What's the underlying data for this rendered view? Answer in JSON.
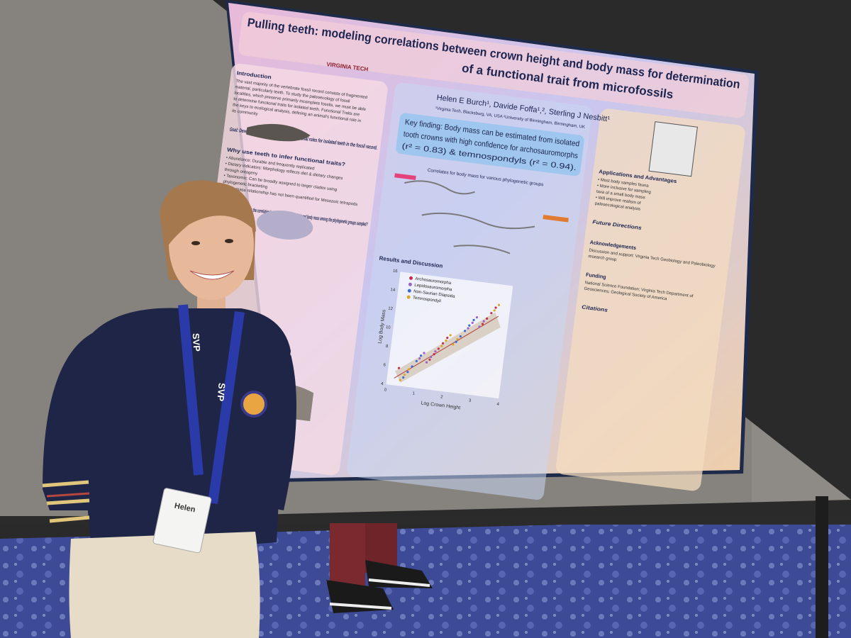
{
  "poster": {
    "title_lines": [
      "Pulling teeth: modeling correlations between crown height and body mass for determination",
      "of a functional trait from microfossils"
    ],
    "logo": "VIRGINIA TECH",
    "authors": "Helen E Burch¹, Davide Foffa¹,², Sterling J Nesbitt¹",
    "affiliations": "¹Virginia Tech, Blacksburg, VA, USA ²University of Birmingham, Birmingham, UK",
    "key_finding": [
      "Key finding: Body mass can be estimated from isolated",
      "tooth crowns with high confidence for archosauromorphs",
      "(r² = 0.83) & temnospondyls (r² = 0.94)."
    ],
    "figure_title": "Correlates for body mass for various phylogenetic groups",
    "left_sections": [
      {
        "heading": "Introduction",
        "lines": [
          "The vast majority of the vertebrate fossil record consists of fragmented",
          "material, particularly teeth. To study the paleoecology of fossil",
          "localities, which preserve primarily incomplete fossils, we must be able",
          "to determine functional traits for isolated teeth. Functional Traits are",
          "the keys to ecological analysis, defining an animal's functional role in",
          "its community"
        ]
      },
      {
        "heading": "Goal: Develop a method to better infer functional roles for isolated teeth in the fossil record.",
        "lines": []
      },
      {
        "heading": "Why use teeth to infer functional traits?",
        "lines": [
          "• Abundance: Durable and frequently replicated",
          "• Dietary indicators: Morphology reflects diet & dietary changes",
          "  through ontogeny",
          "• Taxonomic: Can be broadly assigned to larger clades using",
          "  phylogenetic bracketing",
          "• Body mass relationship has not been quantified for Mesozoic tetrapods"
        ]
      },
      {
        "heading": "Key Question: How strong is the correlation between tooth crown height and body mass among the phylogenetic groups sampled?",
        "lines": []
      }
    ],
    "results": {
      "heading": "Results and Discussion",
      "legend": [
        "Archosauromorpha",
        "Lepidosauromorpha",
        "Non-Saurian Diapsida",
        "Temnospondyli"
      ],
      "y_label": "Log Body Mass",
      "x_label": "Log Crown Height",
      "y_ticks": [
        "4",
        "6",
        "8",
        "10",
        "12",
        "14",
        "16"
      ],
      "x_ticks": [
        "0",
        "1",
        "2",
        "3",
        "4"
      ]
    },
    "right_sections": [
      {
        "heading": "Applications and Advantages",
        "lines": [
          "• Most body samples fauna",
          "• More inclusive for sampling",
          "  taxa of a small body mass",
          "• Will improve realism of",
          "  paleoecological analysis"
        ]
      },
      {
        "heading": "Future Directions",
        "lines": []
      },
      {
        "heading": "Acknowledgements",
        "lines": [
          "Discussion and support: Virginia Tech Geobiology and Paleobiology",
          "research group"
        ]
      },
      {
        "heading": "Funding",
        "lines": [
          "National Science Foundation; Virginia Tech Department of",
          "Geosciences; Geological Society of America"
        ]
      },
      {
        "heading": "Citations",
        "lines": []
      }
    ]
  },
  "lanyard": "SVP",
  "badge": "Helen"
}
